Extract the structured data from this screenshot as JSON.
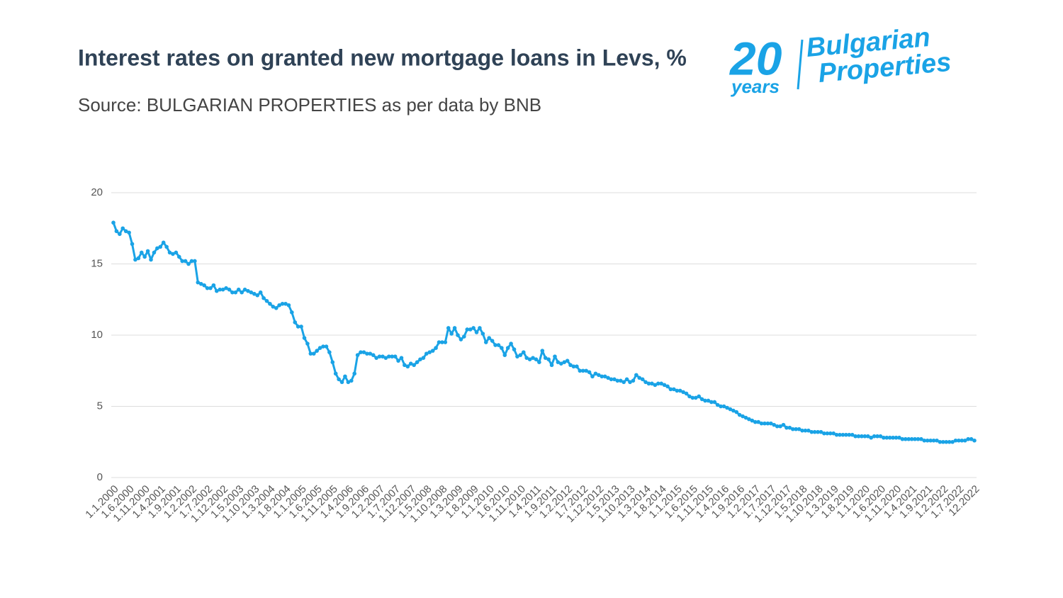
{
  "logo": {
    "number": "20",
    "years": "years",
    "line1": "Bulgarian",
    "line2": "Properties"
  },
  "chart_data": {
    "type": "line",
    "title": "Interest rates on granted new mortgage loans in Levs, %",
    "subtitle": "Source: BULGARIAN PROPERTIES as per data by BNB",
    "color": "#1aa3e6",
    "grid": true,
    "ylim": [
      0,
      20
    ],
    "yticks": [
      0,
      5,
      10,
      15,
      20
    ],
    "categories": [
      "1.1.2000",
      null,
      null,
      null,
      null,
      "1.6.2000",
      null,
      null,
      null,
      null,
      "1.11.2000",
      null,
      null,
      null,
      null,
      "1.4.2001",
      null,
      null,
      null,
      null,
      "1.9.2001",
      null,
      null,
      null,
      null,
      "1.2.2002",
      null,
      null,
      null,
      null,
      "1.7.2002",
      null,
      null,
      null,
      null,
      "1.12.2002",
      null,
      null,
      null,
      null,
      "1.5.2003",
      null,
      null,
      null,
      null,
      "1.10.2003",
      null,
      null,
      null,
      null,
      "1.3.2004",
      null,
      null,
      null,
      null,
      "1.8.2004",
      null,
      null,
      null,
      null,
      "1.1.2005",
      null,
      null,
      null,
      null,
      "1.6.2005",
      null,
      null,
      null,
      null,
      "1.11.2005",
      null,
      null,
      null,
      null,
      "1.4.2006",
      null,
      null,
      null,
      null,
      "1.9.2006",
      null,
      null,
      null,
      null,
      "1.2.2007",
      null,
      null,
      null,
      null,
      "1.7.2007",
      null,
      null,
      null,
      null,
      "1.12.2007",
      null,
      null,
      null,
      null,
      "1.5.2008",
      null,
      null,
      null,
      null,
      "1.10.2008",
      null,
      null,
      null,
      null,
      "1.3.2009",
      null,
      null,
      null,
      null,
      "1.8.2009",
      null,
      null,
      null,
      null,
      "1.1.2010",
      null,
      null,
      null,
      null,
      "1.6.2010",
      null,
      null,
      null,
      null,
      "1.11.2010",
      null,
      null,
      null,
      null,
      "1.4.2011",
      null,
      null,
      null,
      null,
      "1.9.2011",
      null,
      null,
      null,
      null,
      "1.2.2012",
      null,
      null,
      null,
      null,
      "1.7.2012",
      null,
      null,
      null,
      null,
      "1.12.2012",
      null,
      null,
      null,
      null,
      "1.5.2013",
      null,
      null,
      null,
      null,
      "1.10.2013",
      null,
      null,
      null,
      null,
      "1.3.2014",
      null,
      null,
      null,
      null,
      "1.8.2014",
      null,
      null,
      null,
      null,
      "1.1.2015",
      null,
      null,
      null,
      null,
      "1.6.2015",
      null,
      null,
      null,
      null,
      "1.11.2015",
      null,
      null,
      null,
      null,
      "1.4.2016",
      null,
      null,
      null,
      null,
      "1.9.2016",
      null,
      null,
      null,
      null,
      "1.2.2017",
      null,
      null,
      null,
      null,
      "1.7.2017",
      null,
      null,
      null,
      null,
      "1.12.2017",
      null,
      null,
      null,
      null,
      "1.5.2018",
      null,
      null,
      null,
      null,
      "1.10.2018",
      null,
      null,
      null,
      null,
      "1.3.2019",
      null,
      null,
      null,
      null,
      "1.8.2019",
      null,
      null,
      null,
      null,
      "1.1.2020",
      null,
      null,
      null,
      null,
      "1.6.2020",
      null,
      null,
      null,
      null,
      "1.11.2020",
      null,
      null,
      null,
      null,
      "1.4.2021",
      null,
      null,
      null,
      null,
      "1.9.2021",
      null,
      null,
      null,
      null,
      "1.2.2022",
      null,
      null,
      null,
      null,
      "1.7.2022",
      null,
      null,
      null,
      null,
      "12.2022"
    ],
    "values": [
      17.9,
      17.3,
      17.1,
      17.5,
      17.3,
      17.2,
      16.4,
      15.3,
      15.4,
      15.8,
      15.5,
      15.9,
      15.3,
      15.8,
      16.1,
      16.2,
      16.5,
      16.2,
      15.8,
      15.7,
      15.8,
      15.5,
      15.2,
      15.2,
      15.0,
      15.2,
      15.2,
      13.7,
      13.6,
      13.5,
      13.3,
      13.3,
      13.5,
      13.1,
      13.2,
      13.2,
      13.3,
      13.2,
      13.0,
      13.0,
      13.2,
      13.0,
      13.2,
      13.1,
      13.0,
      12.9,
      12.8,
      13.0,
      12.6,
      12.4,
      12.2,
      12.0,
      11.9,
      12.1,
      12.2,
      12.2,
      12.1,
      11.6,
      10.9,
      10.6,
      10.6,
      9.8,
      9.4,
      8.7,
      8.7,
      8.9,
      9.1,
      9.2,
      9.2,
      8.8,
      8.1,
      7.3,
      6.9,
      6.7,
      7.1,
      6.7,
      6.8,
      7.3,
      8.6,
      8.8,
      8.8,
      8.7,
      8.7,
      8.6,
      8.4,
      8.5,
      8.5,
      8.4,
      8.5,
      8.5,
      8.5,
      8.2,
      8.4,
      7.9,
      7.8,
      8.0,
      7.9,
      8.1,
      8.3,
      8.4,
      8.7,
      8.8,
      8.9,
      9.1,
      9.5,
      9.5,
      9.5,
      10.5,
      10.1,
      10.5,
      10.0,
      9.7,
      9.9,
      10.4,
      10.4,
      10.5,
      10.2,
      10.5,
      10.1,
      9.5,
      9.8,
      9.6,
      9.3,
      9.3,
      9.1,
      8.6,
      9.1,
      9.4,
      9.0,
      8.5,
      8.6,
      8.8,
      8.4,
      8.3,
      8.4,
      8.3,
      8.1,
      8.9,
      8.4,
      8.3,
      7.9,
      8.5,
      8.1,
      8.0,
      8.1,
      8.2,
      7.9,
      7.8,
      7.8,
      7.5,
      7.5,
      7.5,
      7.4,
      7.1,
      7.3,
      7.2,
      7.1,
      7.1,
      7.0,
      6.9,
      6.9,
      6.8,
      6.8,
      6.7,
      6.9,
      6.7,
      6.8,
      7.2,
      7.0,
      6.9,
      6.7,
      6.6,
      6.6,
      6.5,
      6.6,
      6.6,
      6.5,
      6.4,
      6.2,
      6.2,
      6.1,
      6.1,
      6.0,
      5.9,
      5.7,
      5.6,
      5.6,
      5.7,
      5.5,
      5.4,
      5.4,
      5.3,
      5.3,
      5.1,
      5.0,
      5.0,
      4.9,
      4.8,
      4.7,
      4.6,
      4.4,
      4.3,
      4.2,
      4.1,
      4.0,
      3.9,
      3.9,
      3.8,
      3.8,
      3.8,
      3.8,
      3.7,
      3.6,
      3.6,
      3.7,
      3.5,
      3.5,
      3.4,
      3.4,
      3.4,
      3.3,
      3.3,
      3.3,
      3.2,
      3.2,
      3.2,
      3.2,
      3.1,
      3.1,
      3.1,
      3.1,
      3.0,
      3.0,
      3.0,
      3.0,
      3.0,
      3.0,
      2.9,
      2.9,
      2.9,
      2.9,
      2.9,
      2.8,
      2.9,
      2.9,
      2.9,
      2.8,
      2.8,
      2.8,
      2.8,
      2.8,
      2.8,
      2.7,
      2.7,
      2.7,
      2.7,
      2.7,
      2.7,
      2.7,
      2.6,
      2.6,
      2.6,
      2.6,
      2.6,
      2.5,
      2.5,
      2.5,
      2.5,
      2.5,
      2.6,
      2.6,
      2.6,
      2.6,
      2.7,
      2.7,
      2.6
    ]
  }
}
